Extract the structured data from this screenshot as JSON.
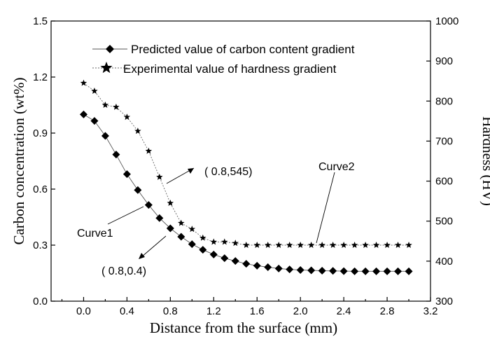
{
  "chart_data": {
    "type": "line",
    "xlabel": "Distance from the surface (mm)",
    "ylabel": "Carbon concentration (wt%)",
    "y2label": "Hardness (HV)",
    "xlim": [
      -0.3,
      3.2
    ],
    "ylim": [
      0.0,
      1.5
    ],
    "y2lim": [
      300,
      1000
    ],
    "x_ticks": [
      0.0,
      0.4,
      0.8,
      1.2,
      1.6,
      2.0,
      2.4,
      2.8,
      3.2
    ],
    "x_tick_labels": [
      "0.0",
      "0.4",
      "0.8",
      "1.2",
      "1.6",
      "2.0",
      "2.4",
      "2.8",
      "3.2"
    ],
    "y_ticks": [
      0.0,
      0.3,
      0.6,
      0.9,
      1.2,
      1.5
    ],
    "y_tick_labels": [
      "0.0",
      "0.3",
      "0.6",
      "0.9",
      "1.2",
      "1.5"
    ],
    "y2_ticks": [
      300,
      400,
      500,
      600,
      700,
      800,
      900,
      1000
    ],
    "y2_tick_labels": [
      "300",
      "400",
      "500",
      "600",
      "700",
      "800",
      "900",
      "1000"
    ],
    "legend_position": "top",
    "series": [
      {
        "name": "Predicted value of carbon content gradient",
        "axis": "left",
        "marker": "diamond",
        "x": [
          0.0,
          0.1,
          0.2,
          0.3,
          0.4,
          0.5,
          0.6,
          0.7,
          0.8,
          0.9,
          1.0,
          1.1,
          1.2,
          1.3,
          1.4,
          1.5,
          1.6,
          1.7,
          1.8,
          1.9,
          2.0,
          2.1,
          2.2,
          2.3,
          2.4,
          2.5,
          2.6,
          2.7,
          2.8,
          2.9,
          3.0
        ],
        "y": [
          1.0,
          0.965,
          0.885,
          0.785,
          0.68,
          0.595,
          0.515,
          0.445,
          0.39,
          0.345,
          0.305,
          0.275,
          0.25,
          0.23,
          0.215,
          0.2,
          0.19,
          0.182,
          0.175,
          0.17,
          0.167,
          0.165,
          0.163,
          0.162,
          0.161,
          0.16,
          0.16,
          0.16,
          0.16,
          0.16,
          0.16
        ]
      },
      {
        "name": "Experimental value of hardness gradient",
        "axis": "right",
        "marker": "star",
        "x": [
          0.0,
          0.1,
          0.2,
          0.3,
          0.4,
          0.5,
          0.6,
          0.7,
          0.8,
          0.9,
          1.0,
          1.1,
          1.2,
          1.3,
          1.4,
          1.5,
          1.6,
          1.7,
          1.8,
          1.9,
          2.0,
          2.1,
          2.2,
          2.3,
          2.4,
          2.5,
          2.6,
          2.7,
          2.8,
          2.9,
          3.0
        ],
        "y": [
          845,
          825,
          790,
          785,
          760,
          725,
          675,
          610,
          545,
          495,
          480,
          458,
          448,
          448,
          445,
          440,
          440,
          440,
          440,
          440,
          440,
          440,
          440,
          440,
          440,
          440,
          440,
          440,
          440,
          440,
          440
        ]
      }
    ],
    "annotations": [
      {
        "text": "( 0.8,545)"
      },
      {
        "text": "( 0.8,0.4)"
      },
      {
        "text": "Curve1"
      },
      {
        "text": "Curve2"
      }
    ]
  }
}
